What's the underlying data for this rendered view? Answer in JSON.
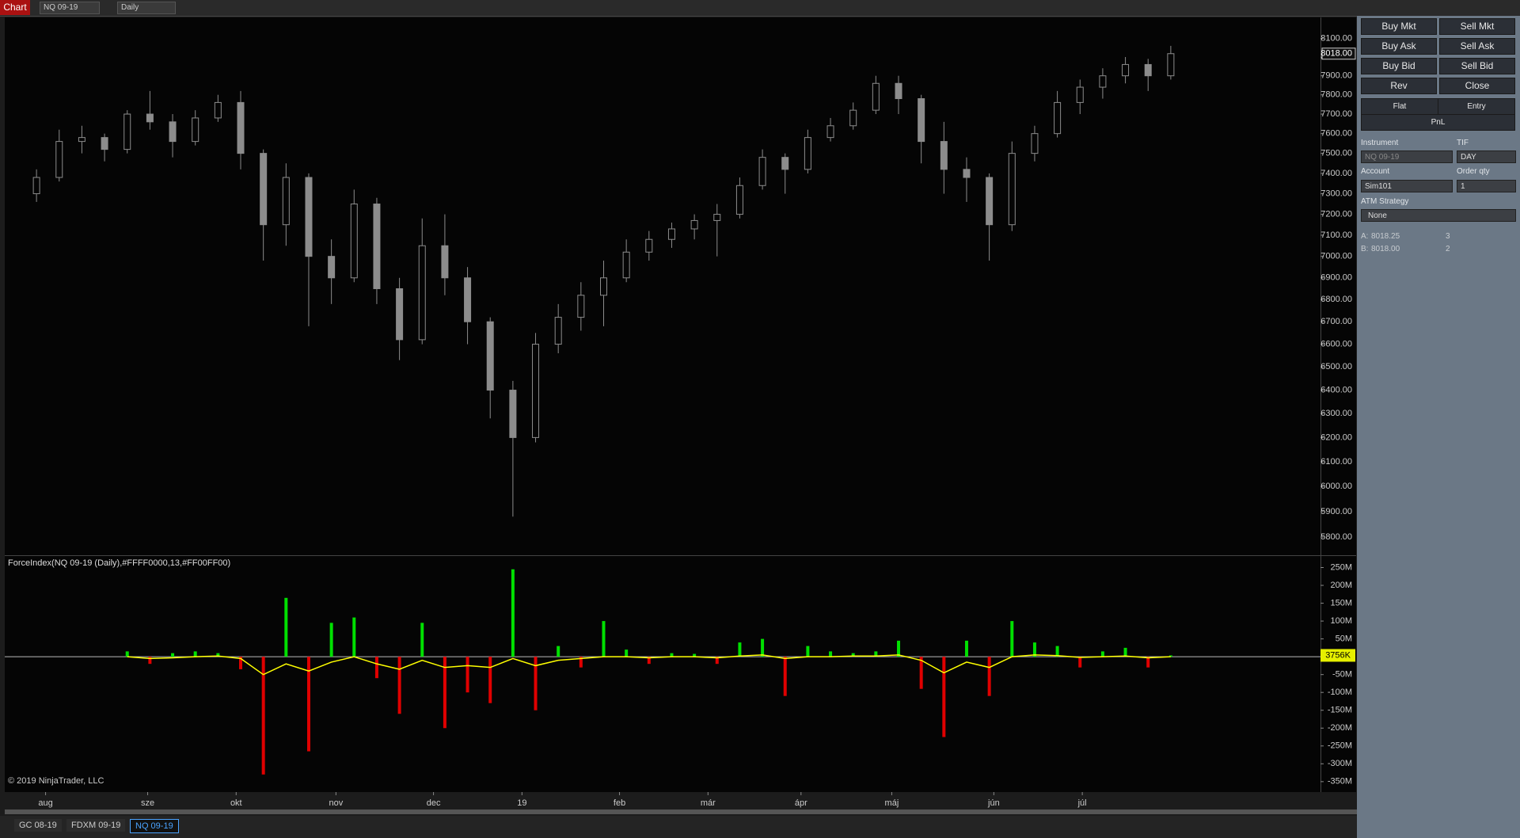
{
  "toolbar": {
    "title": "Chart",
    "instrument": "NQ 09-19",
    "interval": "Daily"
  },
  "chart_data": [
    {
      "type": "candlestick",
      "color": "#8c8c8c",
      "log_scale": true,
      "xlim": [
        -1.4,
        56.6
      ],
      "ylim": [
        5733,
        8215
      ],
      "yticks": [
        {
          "value": 8100,
          "label": "8100.00"
        },
        {
          "value": 8000,
          "label": "8000.00"
        },
        {
          "value": 7900,
          "label": "7900.00"
        },
        {
          "value": 7800,
          "label": "7800.00"
        },
        {
          "value": 7700,
          "label": "7700.00"
        },
        {
          "value": 7600,
          "label": "7600.00"
        },
        {
          "value": 7500,
          "label": "7500.00"
        },
        {
          "value": 7400,
          "label": "7400.00"
        },
        {
          "value": 7300,
          "label": "7300.00"
        },
        {
          "value": 7200,
          "label": "7200.00"
        },
        {
          "value": 7100,
          "label": "7100.00"
        },
        {
          "value": 7000,
          "label": "7000.00"
        },
        {
          "value": 6900,
          "label": "6900.00"
        },
        {
          "value": 6800,
          "label": "6800.00"
        },
        {
          "value": 6700,
          "label": "6700.00"
        },
        {
          "value": 6600,
          "label": "6600.00"
        },
        {
          "value": 6500,
          "label": "6500.00"
        },
        {
          "value": 6400,
          "label": "6400.00"
        },
        {
          "value": 6300,
          "label": "6300.00"
        },
        {
          "value": 6200,
          "label": "6200.00"
        },
        {
          "value": 6100,
          "label": "6100.00"
        },
        {
          "value": 6000,
          "label": "6000.00"
        },
        {
          "value": 5900,
          "label": "5900.00"
        },
        {
          "value": 5800,
          "label": "5800.00"
        }
      ],
      "last_price": {
        "value": 8018,
        "label": "8018.00"
      },
      "open": [
        7300,
        7380,
        7560,
        7580,
        7520,
        7700,
        7660,
        7560,
        7680,
        7760,
        7500,
        7150,
        7380,
        7000,
        6900,
        7250,
        6850,
        6620,
        7050,
        6900,
        6700,
        6400,
        6200,
        6600,
        6720,
        6820,
        6900,
        7020,
        7080,
        7130,
        7170,
        7200,
        7340,
        7480,
        7420,
        7580,
        7640,
        7720,
        7860,
        7780,
        7560,
        7420,
        7380,
        7150,
        7500,
        7600,
        7760,
        7840,
        7900,
        7960,
        7900
      ],
      "high": [
        7420,
        7620,
        7640,
        7600,
        7720,
        7820,
        7700,
        7720,
        7800,
        7820,
        7520,
        7450,
        7400,
        7080,
        7320,
        7280,
        6900,
        7180,
        7200,
        6950,
        6720,
        6440,
        6650,
        6780,
        6880,
        6980,
        7080,
        7120,
        7160,
        7200,
        7250,
        7380,
        7520,
        7500,
        7620,
        7680,
        7760,
        7900,
        7900,
        7800,
        7660,
        7480,
        7400,
        7560,
        7640,
        7820,
        7880,
        7940,
        8000,
        7990,
        8060
      ],
      "low": [
        7260,
        7360,
        7500,
        7460,
        7500,
        7620,
        7480,
        7540,
        7660,
        7420,
        6980,
        7050,
        6680,
        6780,
        6880,
        6780,
        6530,
        6600,
        6820,
        6600,
        6280,
        5880,
        6180,
        6560,
        6660,
        6680,
        6880,
        6980,
        7040,
        7080,
        7000,
        7180,
        7320,
        7300,
        7400,
        7560,
        7620,
        7700,
        7700,
        7450,
        7300,
        7260,
        6980,
        7120,
        7460,
        7580,
        7700,
        7780,
        7860,
        7820,
        7880
      ],
      "close": [
        7380,
        7560,
        7580,
        7520,
        7700,
        7660,
        7560,
        7680,
        7760,
        7500,
        7150,
        7380,
        7000,
        6900,
        7250,
        6850,
        6620,
        7050,
        6900,
        6700,
        6400,
        6200,
        6600,
        6720,
        6820,
        6900,
        7020,
        7080,
        7130,
        7170,
        7200,
        7340,
        7480,
        7420,
        7580,
        7640,
        7720,
        7860,
        7780,
        7560,
        7420,
        7380,
        7150,
        7500,
        7600,
        7760,
        7840,
        7900,
        7960,
        7900,
        8018
      ]
    },
    {
      "type": "bar",
      "title": "ForceIndex(NQ 09-19 (Daily),#FFFF0000,13,#FF00FF00)",
      "color_up": "#00e000",
      "color_down": "#e00000",
      "xlim": [
        -1.4,
        56.6
      ],
      "ylim": [
        -377,
        280
      ],
      "xticks": [
        {
          "value": 0.4,
          "label": "aug"
        },
        {
          "value": 4.9,
          "label": "sze"
        },
        {
          "value": 8.8,
          "label": "okt"
        },
        {
          "value": 13.2,
          "label": "nov"
        },
        {
          "value": 17.5,
          "label": "dec"
        },
        {
          "value": 21.4,
          "label": "19"
        },
        {
          "value": 25.7,
          "label": "feb"
        },
        {
          "value": 29.6,
          "label": "már"
        },
        {
          "value": 33.7,
          "label": "ápr"
        },
        {
          "value": 37.7,
          "label": "máj"
        },
        {
          "value": 42.2,
          "label": "jún"
        },
        {
          "value": 46.1,
          "label": "júl"
        }
      ],
      "yticks": [
        {
          "value": 250,
          "label": "250M"
        },
        {
          "value": 200,
          "label": "200M"
        },
        {
          "value": 150,
          "label": "150M"
        },
        {
          "value": 100,
          "label": "100M"
        },
        {
          "value": 50,
          "label": "50M"
        },
        {
          "value": -50,
          "label": "-50M"
        },
        {
          "value": -100,
          "label": "-100M"
        },
        {
          "value": -150,
          "label": "-150M"
        },
        {
          "value": -200,
          "label": "-200M"
        },
        {
          "value": -250,
          "label": "-250M"
        },
        {
          "value": -300,
          "label": "-300M"
        },
        {
          "value": -350,
          "label": "-350M"
        }
      ],
      "last_value": {
        "value": 3.756,
        "label": "3756K"
      },
      "values": [
        null,
        null,
        null,
        null,
        15,
        -20,
        10,
        15,
        10,
        -35,
        -330,
        165,
        -265,
        95,
        110,
        -60,
        -160,
        95,
        -200,
        -100,
        -130,
        245,
        -150,
        30,
        -30,
        100,
        20,
        -20,
        10,
        8,
        -20,
        40,
        50,
        -110,
        30,
        15,
        10,
        15,
        45,
        -90,
        -225,
        45,
        -110,
        100,
        40,
        30,
        -30,
        15,
        25,
        -30,
        3.756
      ],
      "line": {
        "color": "#ffff00",
        "values": [
          null,
          null,
          null,
          null,
          0,
          -5,
          -3,
          0,
          2,
          -5,
          -50,
          -20,
          -40,
          -15,
          0,
          -20,
          -35,
          -10,
          -30,
          -25,
          -30,
          -5,
          -25,
          -10,
          -5,
          0,
          0,
          -3,
          0,
          0,
          -3,
          2,
          5,
          -5,
          0,
          0,
          2,
          2,
          5,
          -10,
          -45,
          -15,
          -30,
          0,
          5,
          3,
          -2,
          0,
          2,
          -3,
          0
        ]
      }
    }
  ],
  "copyright": "© 2019 NinjaTrader, LLC",
  "order_panel": {
    "buttons": [
      [
        "Buy Mkt",
        "Sell Mkt"
      ],
      [
        "Buy Ask",
        "Sell Ask"
      ],
      [
        "Buy Bid",
        "Sell Bid"
      ],
      [
        "Rev",
        "Close"
      ]
    ],
    "flat": "Flat",
    "entry": "Entry",
    "pnl": "PnL",
    "instrument_label": "Instrument",
    "instrument": "NQ 09-19",
    "tif_label": "TIF",
    "tif": "DAY",
    "account_label": "Account",
    "account": "Sim101",
    "qty_label": "Order qty",
    "qty": "1",
    "atm_label": "ATM Strategy",
    "atm": "None",
    "quotes": [
      {
        "side": "A:",
        "price": "8018.25",
        "size": "3"
      },
      {
        "side": "B:",
        "price": "8018.00",
        "size": "2"
      }
    ]
  },
  "tabs": [
    "GC 08-19",
    "FDXM 09-19",
    "NQ 09-19"
  ]
}
